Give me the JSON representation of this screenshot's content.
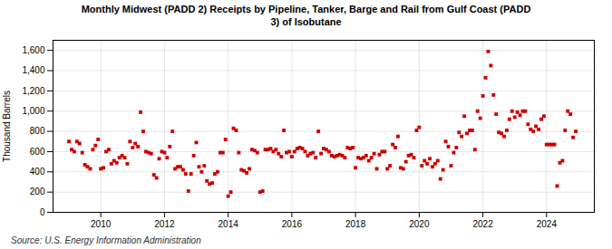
{
  "chart_data": {
    "type": "scatter",
    "title": "Monthly Midwest (PADD 2) Receipts by Pipeline, Tanker, Barge and Rail from Gulf Coast (PADD\n3) of Isobutane",
    "ylabel": "Thousand Barrels",
    "annotations": [
      "Source: U.S. Energy Information Administration"
    ],
    "color": "#cc0000",
    "marker": "square",
    "grid": true,
    "xlim": [
      2008.5,
      2025.5
    ],
    "xticks": [
      2010,
      2012,
      2014,
      2016,
      2018,
      2020,
      2022,
      2024
    ],
    "ylim": [
      0,
      1700
    ],
    "yticks": [
      0,
      200,
      400,
      600,
      800,
      {
        "value": 1000,
        "label": "1,000"
      },
      {
        "value": 1200,
        "label": "1,200"
      },
      {
        "value": 1400,
        "label": "1,400"
      },
      {
        "value": 1600,
        "label": "1,600"
      }
    ],
    "x": [
      2009.0,
      2009.083,
      2009.167,
      2009.25,
      2009.333,
      2009.417,
      2009.5,
      2009.583,
      2009.667,
      2009.75,
      2009.833,
      2009.917,
      2010.0,
      2010.083,
      2010.167,
      2010.25,
      2010.333,
      2010.417,
      2010.5,
      2010.583,
      2010.667,
      2010.75,
      2010.833,
      2010.917,
      2011.0,
      2011.083,
      2011.167,
      2011.25,
      2011.333,
      2011.417,
      2011.5,
      2011.583,
      2011.667,
      2011.75,
      2011.833,
      2011.917,
      2012.0,
      2012.083,
      2012.167,
      2012.25,
      2012.333,
      2012.417,
      2012.5,
      2012.583,
      2012.667,
      2012.75,
      2012.833,
      2012.917,
      2013.0,
      2013.083,
      2013.167,
      2013.25,
      2013.333,
      2013.417,
      2013.5,
      2013.583,
      2013.667,
      2013.75,
      2013.833,
      2013.917,
      2014.0,
      2014.083,
      2014.167,
      2014.25,
      2014.333,
      2014.417,
      2014.5,
      2014.583,
      2014.667,
      2014.75,
      2014.833,
      2014.917,
      2015.0,
      2015.083,
      2015.167,
      2015.25,
      2015.333,
      2015.417,
      2015.5,
      2015.583,
      2015.667,
      2015.75,
      2015.833,
      2015.917,
      2016.0,
      2016.083,
      2016.167,
      2016.25,
      2016.333,
      2016.417,
      2016.5,
      2016.583,
      2016.667,
      2016.75,
      2016.833,
      2016.917,
      2017.0,
      2017.083,
      2017.167,
      2017.25,
      2017.333,
      2017.417,
      2017.5,
      2017.583,
      2017.667,
      2017.75,
      2017.833,
      2017.917,
      2018.0,
      2018.083,
      2018.167,
      2018.25,
      2018.333,
      2018.417,
      2018.5,
      2018.583,
      2018.667,
      2018.75,
      2018.833,
      2018.917,
      2019.0,
      2019.083,
      2019.167,
      2019.25,
      2019.333,
      2019.417,
      2019.5,
      2019.583,
      2019.667,
      2019.75,
      2019.833,
      2019.917,
      2020.0,
      2020.083,
      2020.167,
      2020.25,
      2020.333,
      2020.417,
      2020.5,
      2020.583,
      2020.667,
      2020.75,
      2020.833,
      2020.917,
      2021.0,
      2021.083,
      2021.167,
      2021.25,
      2021.333,
      2021.417,
      2021.5,
      2021.583,
      2021.667,
      2021.75,
      2021.833,
      2021.917,
      2022.0,
      2022.083,
      2022.167,
      2022.25,
      2022.333,
      2022.417,
      2022.5,
      2022.583,
      2022.667,
      2022.75,
      2022.833,
      2022.917,
      2023.0,
      2023.083,
      2023.167,
      2023.25,
      2023.333,
      2023.417,
      2023.5,
      2023.583,
      2023.667,
      2023.75,
      2023.833,
      2023.917,
      2024.0,
      2024.083,
      2024.167,
      2024.25,
      2024.333,
      2024.417,
      2024.5,
      2024.583,
      2024.667,
      2024.75,
      2024.833,
      2024.917
    ],
    "values": [
      700,
      620,
      600,
      700,
      680,
      590,
      470,
      450,
      430,
      620,
      660,
      720,
      430,
      440,
      600,
      620,
      480,
      510,
      490,
      540,
      560,
      540,
      480,
      700,
      640,
      680,
      650,
      990,
      800,
      600,
      590,
      580,
      370,
      340,
      530,
      600,
      590,
      540,
      650,
      800,
      430,
      450,
      450,
      420,
      380,
      210,
      380,
      560,
      690,
      450,
      400,
      460,
      310,
      280,
      290,
      380,
      400,
      590,
      590,
      720,
      160,
      200,
      830,
      810,
      590,
      420,
      410,
      390,
      430,
      620,
      610,
      590,
      200,
      210,
      620,
      620,
      630,
      600,
      620,
      580,
      550,
      810,
      590,
      600,
      550,
      600,
      630,
      640,
      630,
      600,
      560,
      580,
      590,
      540,
      800,
      580,
      630,
      620,
      600,
      560,
      550,
      560,
      570,
      560,
      540,
      640,
      630,
      640,
      440,
      540,
      530,
      540,
      560,
      510,
      540,
      580,
      430,
      570,
      600,
      600,
      430,
      460,
      670,
      640,
      750,
      440,
      430,
      500,
      560,
      570,
      540,
      810,
      840,
      460,
      510,
      480,
      530,
      450,
      480,
      510,
      330,
      420,
      700,
      650,
      460,
      590,
      640,
      790,
      750,
      950,
      780,
      810,
      810,
      620,
      1000,
      930,
      1150,
      1330,
      1590,
      1450,
      1160,
      970,
      790,
      780,
      750,
      810,
      920,
      1000,
      940,
      990,
      960,
      1000,
      1000,
      870,
      820,
      800,
      850,
      820,
      920,
      950,
      670,
      670,
      670,
      670,
      260,
      490,
      510,
      810,
      1000,
      970,
      740,
      800
    ]
  }
}
